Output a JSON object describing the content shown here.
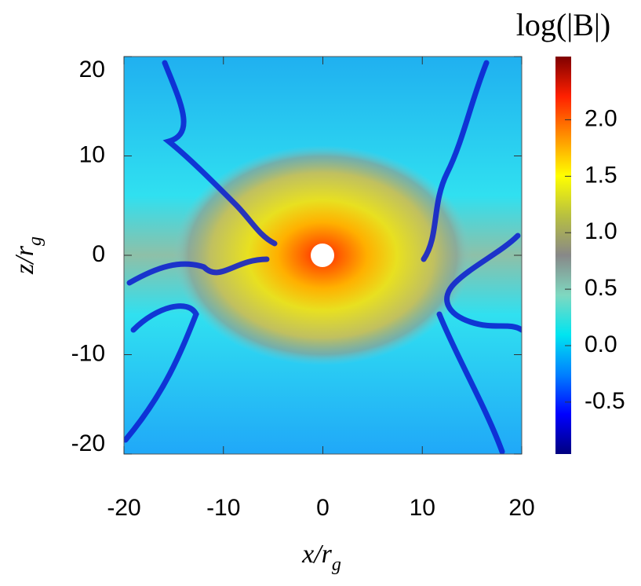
{
  "chart_data": {
    "type": "heatmap",
    "xlabel": "x/r",
    "xlabel_sub": "g",
    "ylabel": "z/r",
    "ylabel_sub": "g",
    "xlim": [
      -20,
      20
    ],
    "xticks": [
      -20,
      -10,
      0,
      10,
      20
    ],
    "ylim": [
      -20,
      20
    ],
    "yticks": [
      -20,
      -10,
      0,
      10,
      20
    ],
    "colorbar_label": "log(|B|)",
    "clim": [
      -0.96,
      2.56
    ],
    "cticks": [
      {
        "value": -0.5,
        "label": "-0.5"
      },
      {
        "value": 0,
        "label": "0.0"
      },
      {
        "value": 0.5,
        "label": "0.5"
      },
      {
        "value": 1,
        "label": "1.0"
      },
      {
        "value": 1.5,
        "label": "1.5"
      },
      {
        "value": 2,
        "label": "2.0"
      }
    ],
    "colormap": [
      "#00007f",
      "#0000ff",
      "#0080ff",
      "#00e5f0",
      "#7fd8c0",
      "#888888",
      "#b8c040",
      "#ffff00",
      "#ff9000",
      "#ff2000",
      "#7f0000"
    ]
  }
}
